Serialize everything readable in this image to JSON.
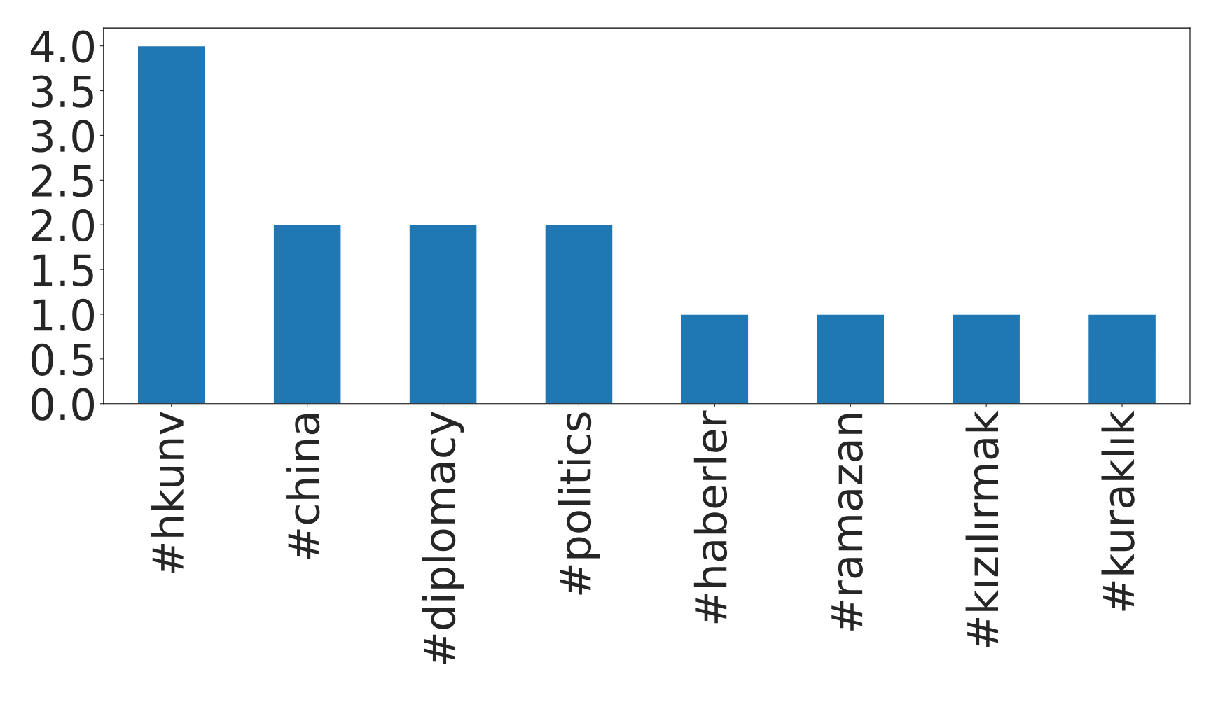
{
  "chart_data": {
    "type": "bar",
    "categories": [
      "#hkunv",
      "#china",
      "#diplomacy",
      "#politics",
      "#haberler",
      "#ramazan",
      "#kızılırmak",
      "#kuraklık"
    ],
    "values": [
      4,
      2,
      2,
      2,
      1,
      1,
      1,
      1
    ],
    "color": "#1f77b4",
    "ylim": [
      0,
      4.2
    ],
    "yticks": [
      {
        "value": 0,
        "label": "0.0"
      },
      {
        "value": 0.5,
        "label": "0.5"
      },
      {
        "value": 1,
        "label": "1.0"
      },
      {
        "value": 1.5,
        "label": "1.5"
      },
      {
        "value": 2,
        "label": "2.0"
      },
      {
        "value": 2.5,
        "label": "2.5"
      },
      {
        "value": 3,
        "label": "3.0"
      },
      {
        "value": 3.5,
        "label": "3.5"
      },
      {
        "value": 4,
        "label": "4.0"
      }
    ],
    "grid": false,
    "legend": false
  }
}
